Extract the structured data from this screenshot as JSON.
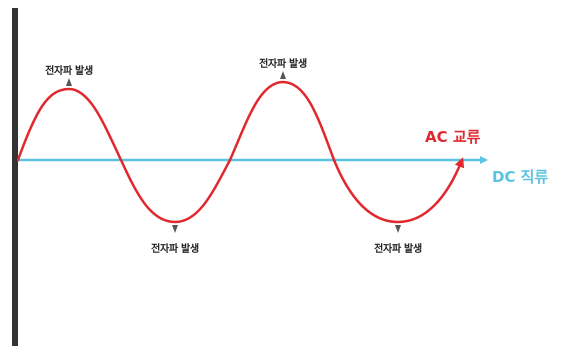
{
  "colors": {
    "ac": "#e0282e",
    "dc": "#5bc3e0",
    "wall": "#333333",
    "marker": "#555555"
  },
  "labels": {
    "emission_1": "전자파 발생",
    "emission_2": "전자파 발생",
    "emission_3": "전자파 발생",
    "emission_4": "전자파 발생",
    "ac": "AC 교류",
    "dc": "DC 직류"
  }
}
